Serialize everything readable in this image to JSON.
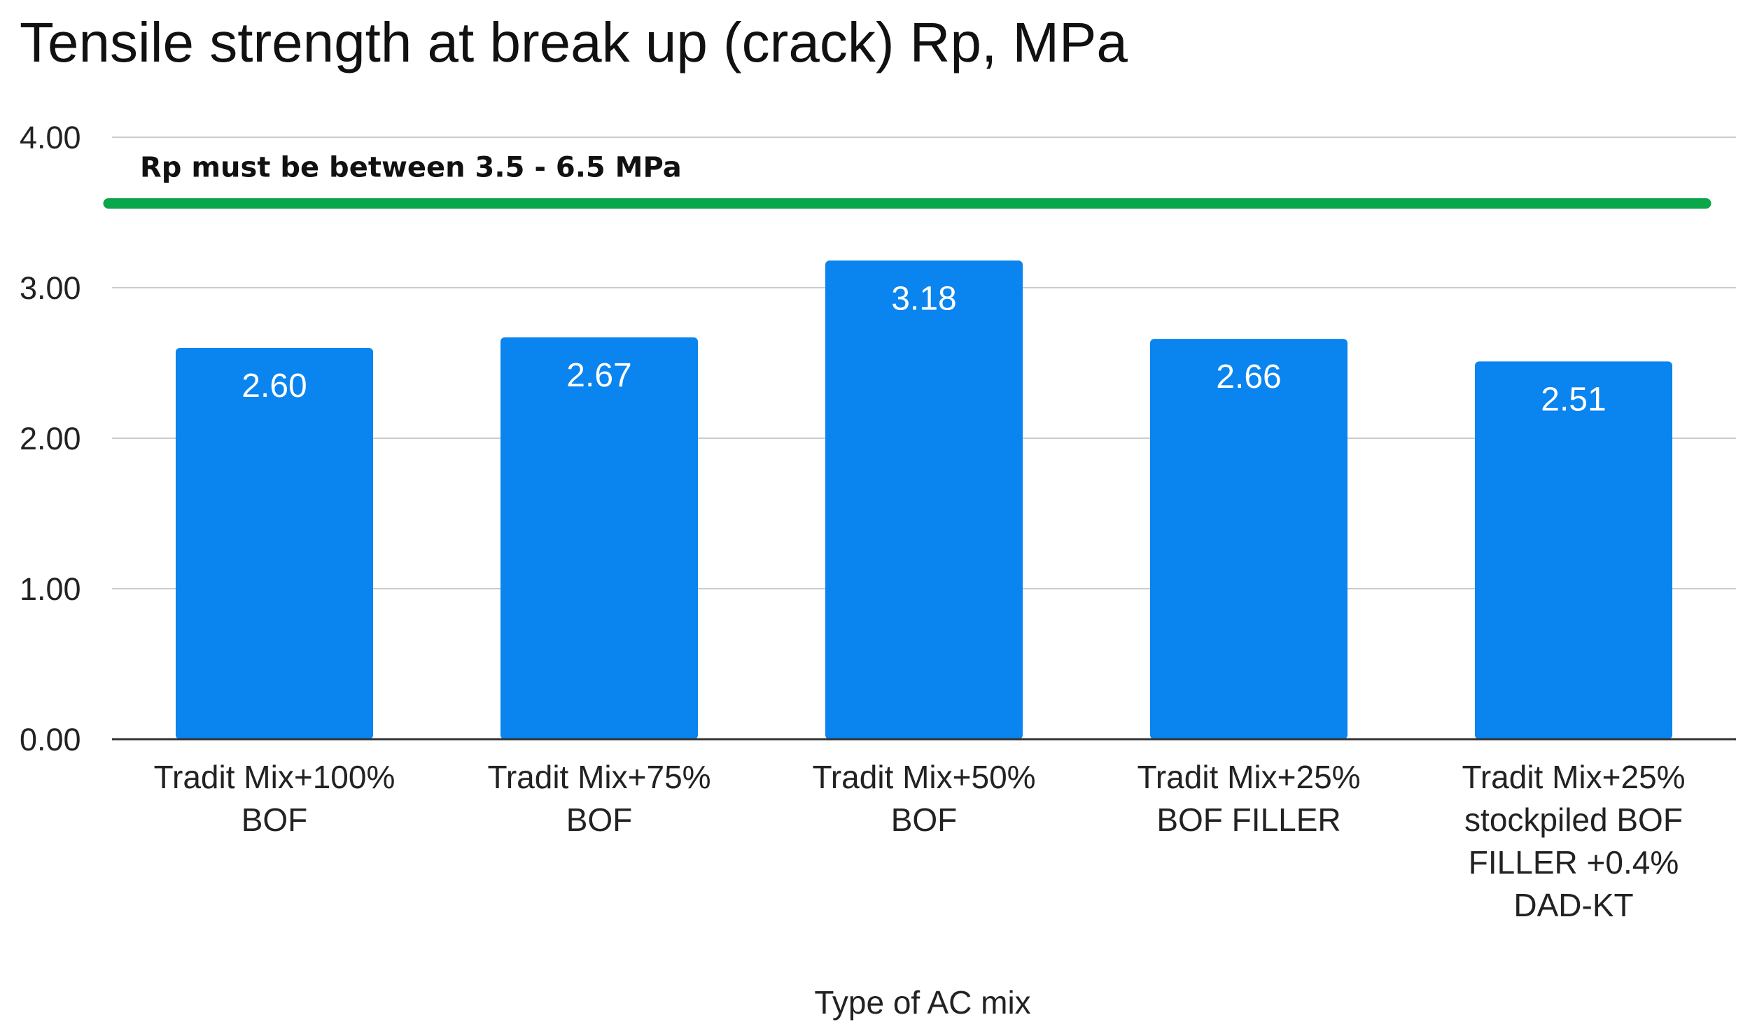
{
  "chart_data": {
    "type": "bar",
    "title": "Tensile strength at break up (crack) Rp, MPa",
    "xlabel": "Type of AC mix",
    "ylabel": "",
    "ylim": [
      0,
      4
    ],
    "yticks": [
      "0.00",
      "1.00",
      "2.00",
      "3.00",
      "4.00"
    ],
    "grid": true,
    "categories": [
      [
        "Tradit Mix+100%",
        "BOF"
      ],
      [
        "Tradit Mix+75%",
        "BOF"
      ],
      [
        "Tradit Mix+50%",
        "BOF"
      ],
      [
        "Tradit Mix+25%",
        "BOF FILLER"
      ],
      [
        "Tradit Mix+25%",
        "stockpiled BOF",
        "FILLER +0.4%",
        "DAD-KT"
      ]
    ],
    "values": [
      2.6,
      2.67,
      3.18,
      2.66,
      2.51
    ],
    "data_labels": [
      "2.60",
      "2.67",
      "3.18",
      "2.66",
      "2.51"
    ],
    "bar_color": "#0a84ef",
    "reference_line": {
      "value": 3.56,
      "label": "Rp must be between 3.5 - 6.5 MPa",
      "color": "#0aa64a"
    }
  }
}
